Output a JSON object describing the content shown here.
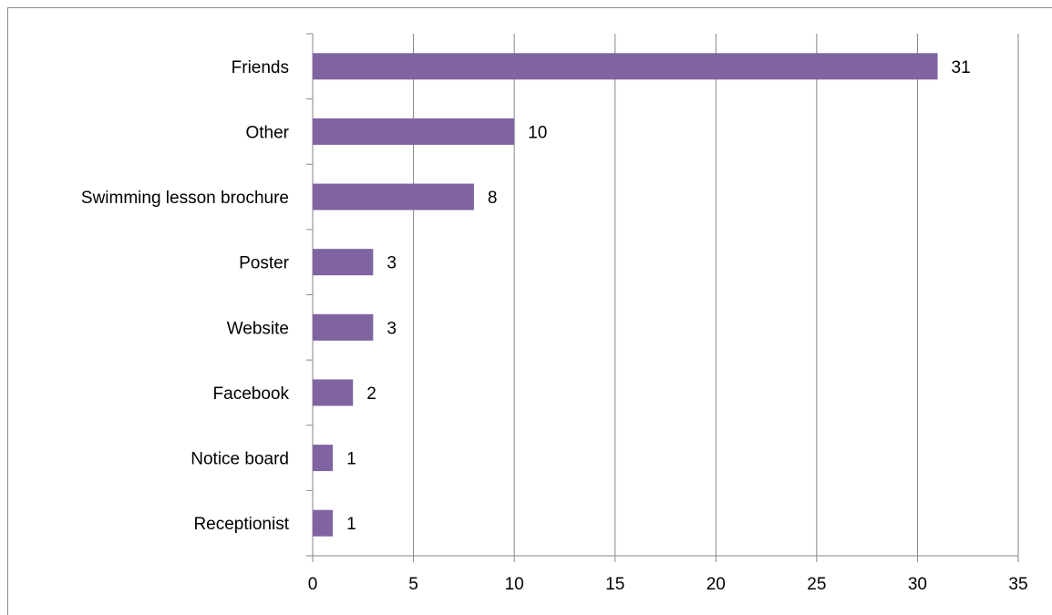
{
  "chart_data": {
    "type": "bar",
    "orientation": "horizontal",
    "title": "",
    "xlabel": "",
    "ylabel": "",
    "categories": [
      "Friends",
      "Other",
      "Swimming lesson brochure",
      "Poster",
      "Website",
      "Facebook",
      "Notice board",
      "Receptionist"
    ],
    "values": [
      31,
      10,
      8,
      3,
      3,
      2,
      1,
      1
    ],
    "xlim": [
      0,
      35
    ],
    "xticks": [
      0,
      5,
      10,
      15,
      20,
      25,
      30,
      35
    ],
    "grid": "vertical",
    "legend": "none",
    "data_labels": true,
    "colors": {
      "bar": "#8064a2",
      "grid": "#868686",
      "axis": "#868686",
      "frame": "#8c8c8c"
    }
  }
}
